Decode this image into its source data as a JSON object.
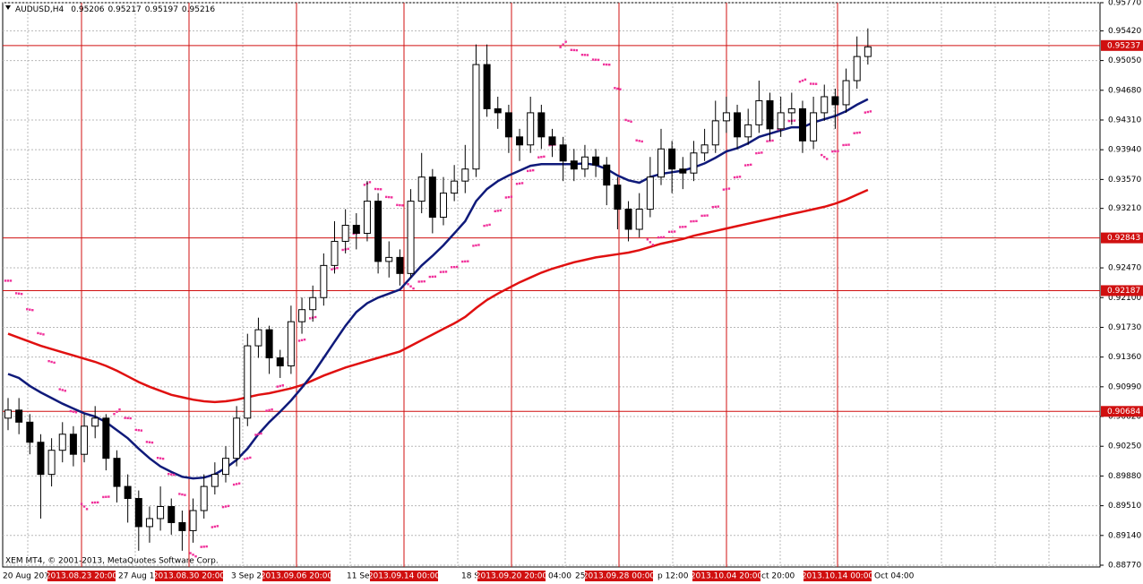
{
  "chart_data": {
    "type": "candlestick",
    "title": "AUDUSD,H4",
    "header_values": [
      0.95206,
      0.95217,
      0.95197,
      0.95216
    ],
    "copyright": "XEM MT4, © 2001-2013, MetaQuotes Software Corp.",
    "open": [
      0.906,
      0.907,
      0.9055,
      0.903,
      0.899,
      0.902,
      0.904,
      0.9015,
      0.905,
      0.906,
      0.901,
      0.8975,
      0.896,
      0.8925,
      0.8935,
      0.895,
      0.893,
      0.892,
      0.8945,
      0.8975,
      0.899,
      0.901,
      0.906,
      0.915,
      0.917,
      0.9135,
      0.9125,
      0.918,
      0.9195,
      0.921,
      0.925,
      0.928,
      0.93,
      0.929,
      0.933,
      0.9255,
      0.926,
      0.924,
      0.933,
      0.936,
      0.931,
      0.934,
      0.9355,
      0.937,
      0.95,
      0.9445,
      0.944,
      0.941,
      0.94,
      0.944,
      0.941,
      0.94,
      0.938,
      0.937,
      0.9385,
      0.9375,
      0.935,
      0.932,
      0.9295,
      0.932,
      0.936,
      0.9395,
      0.937,
      0.9365,
      0.939,
      0.94,
      0.943,
      0.944,
      0.941,
      0.9425,
      0.9455,
      0.942,
      0.944,
      0.9445,
      0.9405,
      0.944,
      0.946,
      0.945,
      0.948,
      0.951
    ],
    "high": [
      0.9085,
      0.9085,
      0.9065,
      0.904,
      0.9035,
      0.9055,
      0.905,
      0.9065,
      0.9075,
      0.9065,
      0.902,
      0.899,
      0.897,
      0.895,
      0.8975,
      0.896,
      0.8945,
      0.896,
      0.899,
      0.9005,
      0.9025,
      0.9075,
      0.9165,
      0.9185,
      0.9175,
      0.9145,
      0.92,
      0.921,
      0.9225,
      0.9265,
      0.9305,
      0.932,
      0.9315,
      0.9355,
      0.934,
      0.928,
      0.927,
      0.9345,
      0.939,
      0.937,
      0.936,
      0.9375,
      0.94,
      0.9525,
      0.9525,
      0.946,
      0.945,
      0.942,
      0.946,
      0.945,
      0.942,
      0.941,
      0.9395,
      0.94,
      0.9395,
      0.9385,
      0.936,
      0.933,
      0.934,
      0.9385,
      0.942,
      0.9405,
      0.9385,
      0.9405,
      0.942,
      0.9455,
      0.946,
      0.945,
      0.9445,
      0.948,
      0.9465,
      0.946,
      0.9465,
      0.9455,
      0.946,
      0.9475,
      0.947,
      0.9495,
      0.9535,
      0.9545
    ],
    "low": [
      0.9045,
      0.904,
      0.9015,
      0.8935,
      0.8975,
      0.9005,
      0.9,
      0.9005,
      0.9035,
      0.8995,
      0.8955,
      0.893,
      0.8895,
      0.8905,
      0.892,
      0.8915,
      0.8895,
      0.8905,
      0.8935,
      0.8965,
      0.898,
      0.9,
      0.905,
      0.9135,
      0.9115,
      0.911,
      0.9115,
      0.9165,
      0.918,
      0.92,
      0.924,
      0.9265,
      0.927,
      0.928,
      0.924,
      0.9235,
      0.9225,
      0.9235,
      0.9315,
      0.929,
      0.93,
      0.933,
      0.934,
      0.936,
      0.9435,
      0.942,
      0.939,
      0.938,
      0.939,
      0.9395,
      0.9385,
      0.9355,
      0.9355,
      0.936,
      0.936,
      0.9325,
      0.9295,
      0.928,
      0.9285,
      0.931,
      0.935,
      0.934,
      0.9345,
      0.9355,
      0.938,
      0.939,
      0.9415,
      0.9395,
      0.94,
      0.9415,
      0.9405,
      0.941,
      0.9425,
      0.939,
      0.9395,
      0.943,
      0.942,
      0.944,
      0.947,
      0.95
    ],
    "close": [
      0.907,
      0.9055,
      0.903,
      0.899,
      0.902,
      0.904,
      0.9015,
      0.905,
      0.906,
      0.901,
      0.8975,
      0.896,
      0.8925,
      0.8935,
      0.895,
      0.893,
      0.892,
      0.8945,
      0.8975,
      0.899,
      0.901,
      0.906,
      0.915,
      0.917,
      0.9135,
      0.9125,
      0.918,
      0.9195,
      0.921,
      0.925,
      0.928,
      0.93,
      0.929,
      0.933,
      0.9255,
      0.926,
      0.924,
      0.933,
      0.936,
      0.931,
      0.934,
      0.9355,
      0.937,
      0.95,
      0.9445,
      0.944,
      0.941,
      0.94,
      0.944,
      0.941,
      0.94,
      0.938,
      0.937,
      0.9385,
      0.9375,
      0.935,
      0.932,
      0.9295,
      0.932,
      0.936,
      0.9395,
      0.937,
      0.9365,
      0.939,
      0.94,
      0.943,
      0.944,
      0.941,
      0.9425,
      0.9455,
      0.942,
      0.944,
      0.9445,
      0.9405,
      0.944,
      0.946,
      0.945,
      0.948,
      0.951,
      0.9522
    ],
    "ma_fast": {
      "color": "#0f1a7a",
      "values": [
        0.9115,
        0.911,
        0.91,
        0.9092,
        0.9085,
        0.9078,
        0.9072,
        0.9066,
        0.9062,
        0.9055,
        0.9045,
        0.9035,
        0.9022,
        0.901,
        0.9,
        0.8993,
        0.8987,
        0.8985,
        0.8986,
        0.899,
        0.8998,
        0.9008,
        0.9022,
        0.904,
        0.9055,
        0.9068,
        0.9082,
        0.9098,
        0.9115,
        0.9135,
        0.9155,
        0.9175,
        0.9192,
        0.9203,
        0.921,
        0.9215,
        0.922,
        0.9235,
        0.925,
        0.9262,
        0.9275,
        0.929,
        0.9305,
        0.933,
        0.9345,
        0.9355,
        0.9362,
        0.9368,
        0.9374,
        0.9376,
        0.9376,
        0.9376,
        0.9376,
        0.9377,
        0.9375,
        0.937,
        0.9362,
        0.9356,
        0.9353,
        0.936,
        0.9364,
        0.9366,
        0.9368,
        0.9372,
        0.9377,
        0.9384,
        0.9392,
        0.9396,
        0.9402,
        0.941,
        0.9414,
        0.9418,
        0.9422,
        0.9422,
        0.9428,
        0.9432,
        0.9436,
        0.9442,
        0.945,
        0.9457
      ]
    },
    "ma_slow": {
      "color": "#e01010",
      "values": [
        0.9165,
        0.916,
        0.9155,
        0.915,
        0.9146,
        0.9142,
        0.9138,
        0.9134,
        0.913,
        0.9125,
        0.9119,
        0.9112,
        0.9105,
        0.9099,
        0.9094,
        0.9089,
        0.9086,
        0.9083,
        0.9081,
        0.908,
        0.9081,
        0.9083,
        0.9086,
        0.9089,
        0.9091,
        0.9094,
        0.9097,
        0.9101,
        0.9107,
        0.9113,
        0.9118,
        0.9123,
        0.9127,
        0.9131,
        0.9135,
        0.9139,
        0.9143,
        0.915,
        0.9157,
        0.9164,
        0.9171,
        0.9178,
        0.9186,
        0.9197,
        0.9207,
        0.9215,
        0.9222,
        0.9229,
        0.9235,
        0.9241,
        0.9246,
        0.925,
        0.9254,
        0.9257,
        0.926,
        0.9262,
        0.9264,
        0.9266,
        0.9269,
        0.9273,
        0.9277,
        0.928,
        0.9283,
        0.9287,
        0.929,
        0.9293,
        0.9296,
        0.9299,
        0.9302,
        0.9305,
        0.9308,
        0.9311,
        0.9314,
        0.9317,
        0.932,
        0.9323,
        0.9327,
        0.9332,
        0.9338,
        0.9344
      ]
    },
    "sar": {
      "color": "#f0309a",
      "values": [
        0.9231,
        0.9215,
        0.9195,
        0.9165,
        0.913,
        0.9095,
        0.9068,
        0.895,
        0.8955,
        0.8962,
        0.9068,
        0.906,
        0.9045,
        0.903,
        0.901,
        0.899,
        0.8965,
        0.889,
        0.89,
        0.8925,
        0.895,
        0.8978,
        0.901,
        0.904,
        0.907,
        0.91,
        0.913,
        0.9157,
        0.9185,
        0.9215,
        0.9246,
        0.927,
        0.929,
        0.9352,
        0.9345,
        0.9335,
        0.9325,
        0.9224,
        0.923,
        0.9236,
        0.9242,
        0.9248,
        0.9255,
        0.9275,
        0.93,
        0.9318,
        0.9335,
        0.9352,
        0.9368,
        0.9385,
        0.94,
        0.9525,
        0.9518,
        0.9512,
        0.9506,
        0.95,
        0.947,
        0.943,
        0.9405,
        0.9279,
        0.9285,
        0.9292,
        0.9298,
        0.9305,
        0.9312,
        0.9323,
        0.9345,
        0.936,
        0.9375,
        0.939,
        0.9405,
        0.942,
        0.943,
        0.948,
        0.9476,
        0.9385,
        0.9392,
        0.94,
        0.9415,
        0.9441
      ]
    },
    "ylim": [
      0.8877,
      0.9577
    ],
    "yticks": [
      {
        "value": 0.9577,
        "label": "0.95770"
      },
      {
        "value": 0.9542,
        "label": "0.95420"
      },
      {
        "value": 0.9505,
        "label": "0.95050"
      },
      {
        "value": 0.9468,
        "label": "0.94680"
      },
      {
        "value": 0.9431,
        "label": "0.94310"
      },
      {
        "value": 0.9394,
        "label": "0.93940"
      },
      {
        "value": 0.9357,
        "label": "0.93570"
      },
      {
        "value": 0.9321,
        "label": "0.93210"
      },
      {
        "value": 0.9247,
        "label": "0.92470"
      },
      {
        "value": 0.921,
        "label": "0.92100"
      },
      {
        "value": 0.9173,
        "label": "0.91730"
      },
      {
        "value": 0.9136,
        "label": "0.91360"
      },
      {
        "value": 0.9099,
        "label": "0.90990"
      },
      {
        "value": 0.9062,
        "label": "0.90620"
      },
      {
        "value": 0.9025,
        "label": "0.90250"
      },
      {
        "value": 0.8988,
        "label": "0.89880"
      },
      {
        "value": 0.8951,
        "label": "0.89510"
      },
      {
        "value": 0.8914,
        "label": "0.89140"
      },
      {
        "value": 0.8877,
        "label": "0.88770"
      }
    ],
    "hlines": [
      0.95237,
      0.92843,
      0.92187,
      0.90684
    ],
    "vlines": [
      "2013.08.23 20:00",
      "2013.08.30 20:00",
      "2013.09.06 20:00",
      "2013.09.14 00:00",
      "2013.09.20 20:00",
      "2013.09.28 00:00",
      "2013.10.04 20:00",
      "2013.10.14 00:00"
    ],
    "xlabels": [
      "20 Aug 201",
      "27 Aug 12",
      "3 Sep 2",
      "11 Se",
      "18 S",
      "04:00",
      "25",
      "p 12:00",
      "ct 20:00",
      "Oct 04:00"
    ],
    "grid": true
  }
}
